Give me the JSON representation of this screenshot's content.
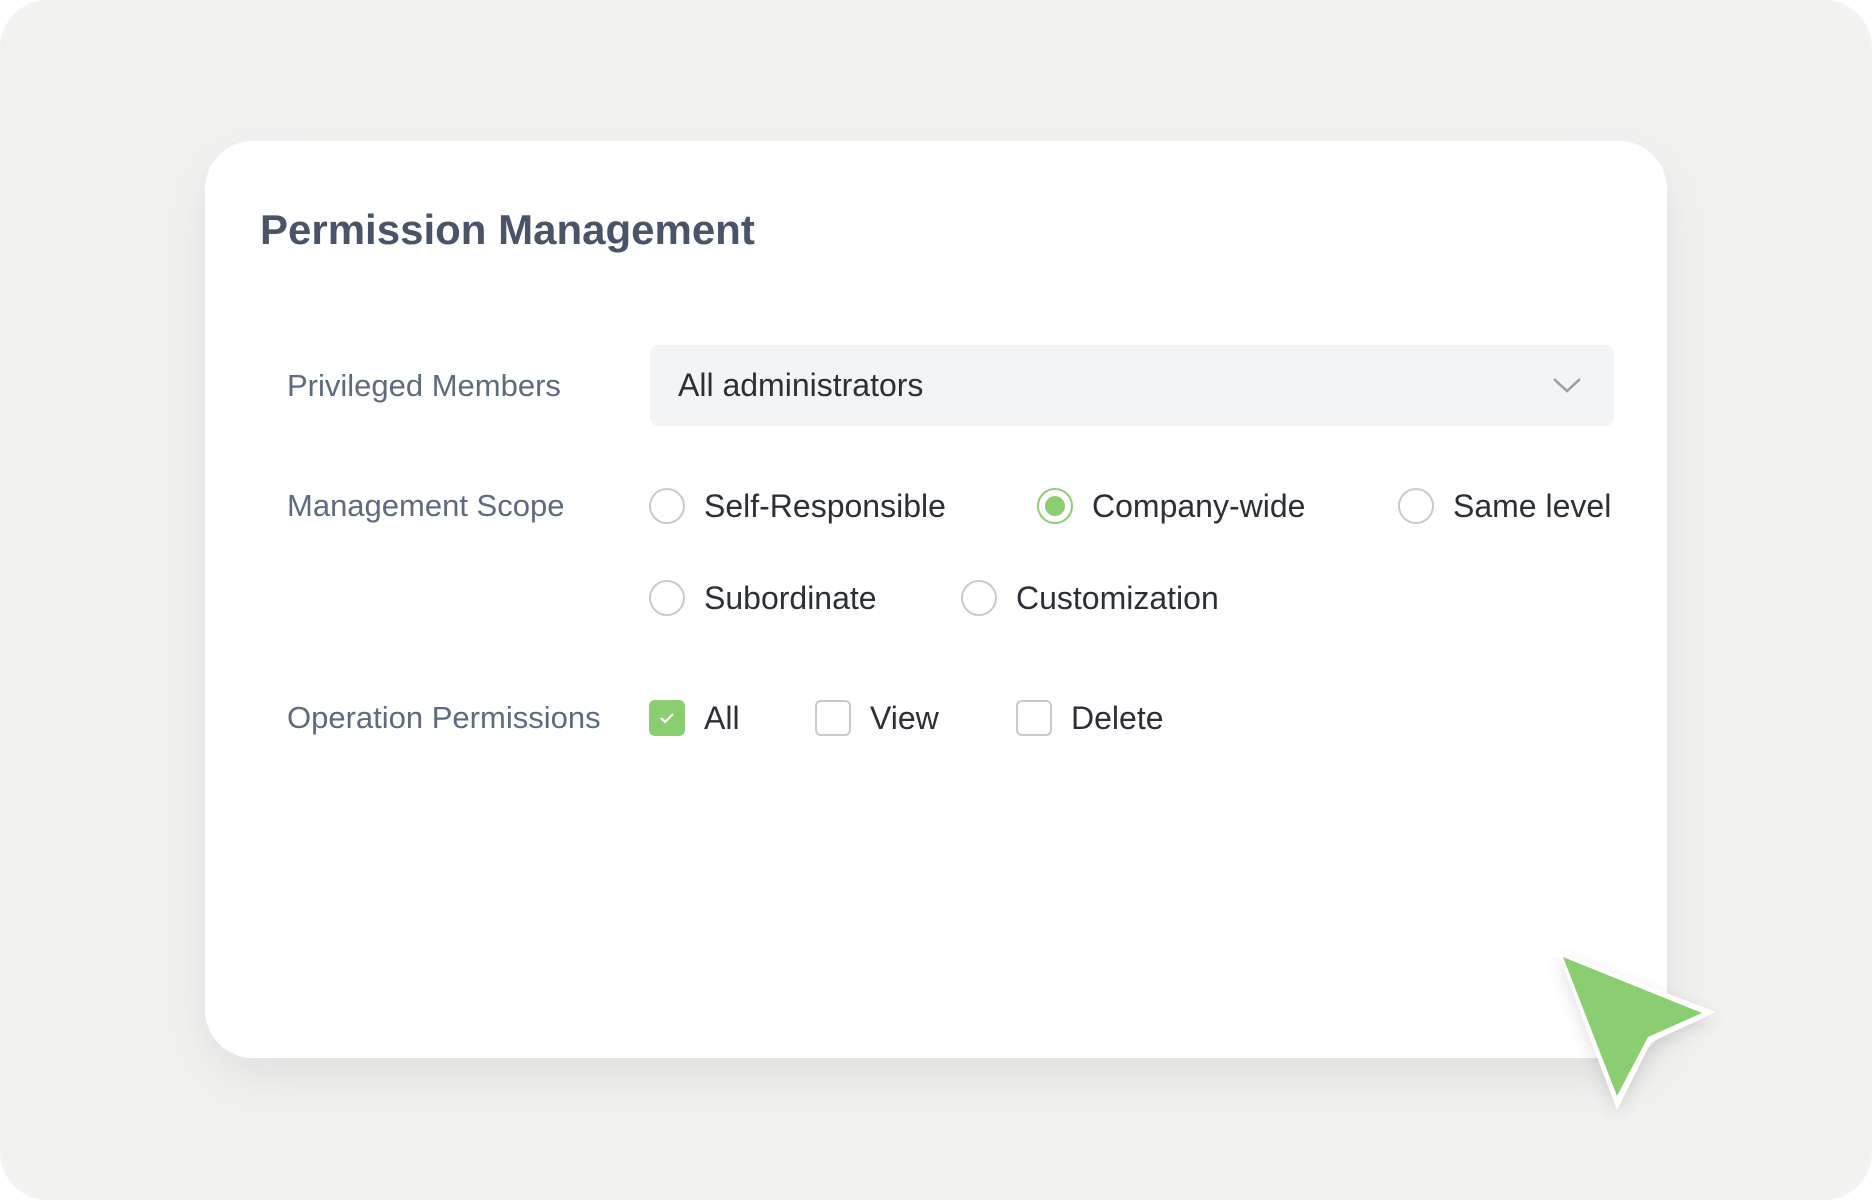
{
  "accent": "#8bce72",
  "title": "Permission Management",
  "privileged": {
    "label": "Privileged Members",
    "value": "All administrators"
  },
  "scope": {
    "label": "Management Scope",
    "options": [
      {
        "label": "Self-Responsible",
        "selected": false
      },
      {
        "label": "Company-wide",
        "selected": true
      },
      {
        "label": "Same level",
        "selected": false
      },
      {
        "label": "Subordinate",
        "selected": false
      },
      {
        "label": "Customization",
        "selected": false
      }
    ]
  },
  "operations": {
    "label": "Operation Permissions",
    "options": [
      {
        "label": "All",
        "checked": true
      },
      {
        "label": "View",
        "checked": false
      },
      {
        "label": "Delete",
        "checked": false
      }
    ]
  }
}
